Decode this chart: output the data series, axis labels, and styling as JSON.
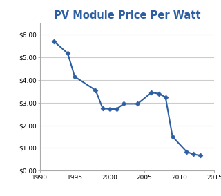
{
  "title": "PV Module Price Per Watt",
  "title_color": "#2E5FA3",
  "title_fontsize": 10.5,
  "years": [
    1992,
    1994,
    1995,
    1998,
    1999,
    2000,
    2001,
    2002,
    2004,
    2006,
    2007,
    2008,
    2009,
    2011,
    2012,
    2013
  ],
  "prices": [
    5.72,
    5.18,
    4.15,
    3.55,
    2.75,
    2.72,
    2.72,
    2.95,
    2.95,
    3.45,
    3.4,
    3.25,
    1.5,
    0.84,
    0.72,
    0.67
  ],
  "line_color": "#2E5FA3",
  "marker": "D",
  "marker_size": 3.5,
  "xlim": [
    1990,
    2015
  ],
  "ylim": [
    0,
    6.5
  ],
  "yticks": [
    0.0,
    1.0,
    2.0,
    3.0,
    4.0,
    5.0,
    6.0
  ],
  "xticks": [
    1990,
    1995,
    2000,
    2005,
    2010,
    2015
  ],
  "grid_color": "#cccccc",
  "background_color": "#ffffff",
  "border_color": "#aaaaaa",
  "tick_labelsize": 6.5,
  "linewidth": 1.5
}
